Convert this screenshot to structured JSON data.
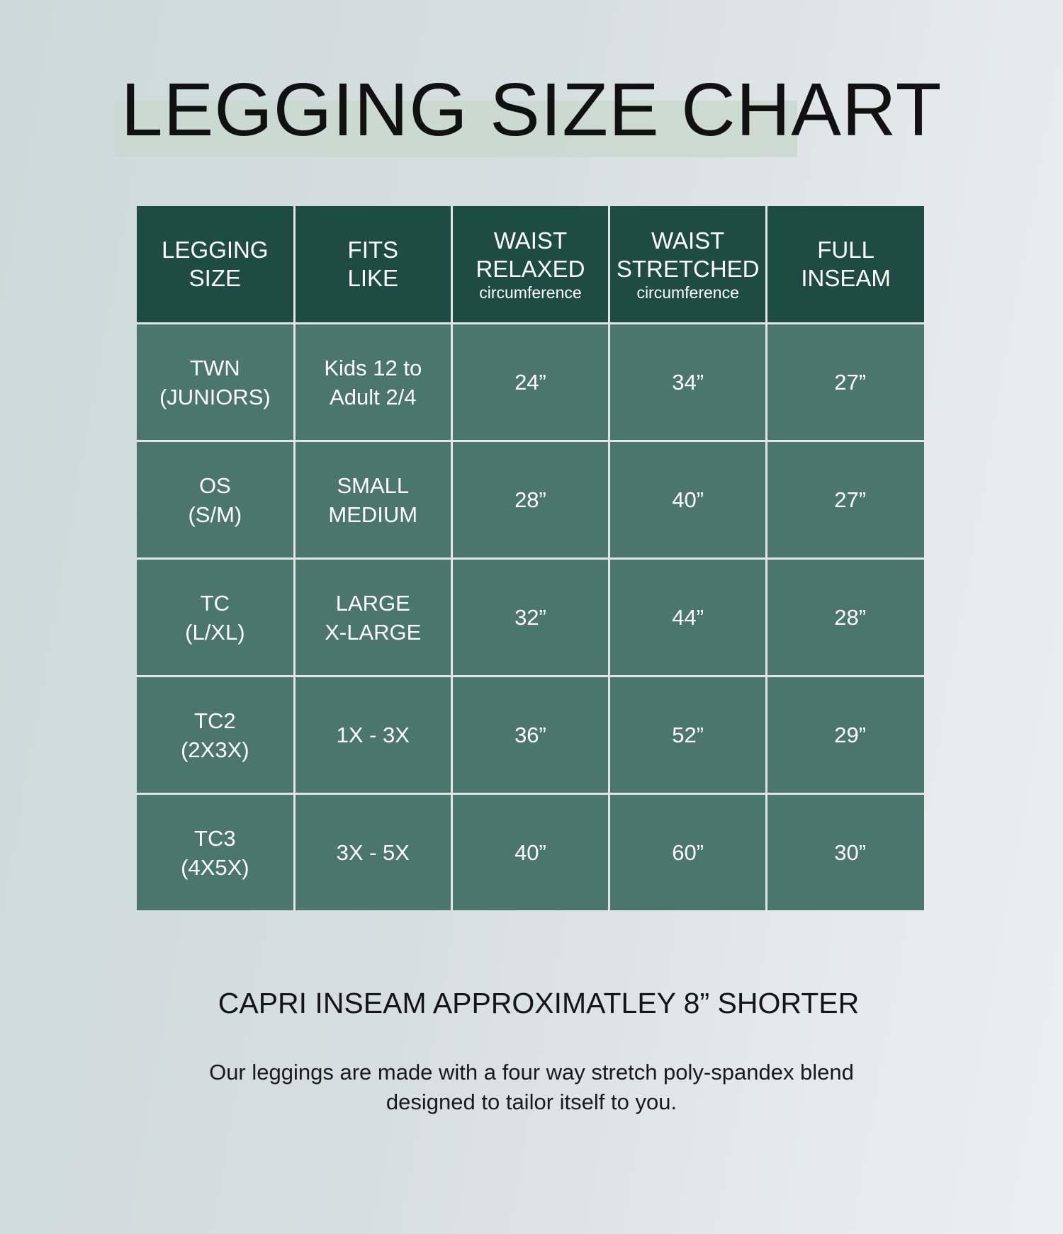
{
  "title": "LEGGING SIZE CHART",
  "table": {
    "headers": [
      {
        "main": "LEGGING\nSIZE",
        "sub": ""
      },
      {
        "main": "FITS\nLIKE",
        "sub": ""
      },
      {
        "main": "WAIST\nRELAXED",
        "sub": "circumference"
      },
      {
        "main": "WAIST\nSTRETCHED",
        "sub": "circumference"
      },
      {
        "main": "FULL\nINSEAM",
        "sub": ""
      }
    ],
    "rows": [
      [
        "TWN\n(JUNIORS)",
        "Kids 12 to\nAdult 2/4",
        "24”",
        "34”",
        "27”"
      ],
      [
        "OS\n(S/M)",
        "SMALL\nMEDIUM",
        "28”",
        "40”",
        "27”"
      ],
      [
        "TC\n(L/XL)",
        "LARGE\nX-LARGE",
        "32”",
        "44”",
        "28”"
      ],
      [
        "TC2\n(2X3X)",
        "1X - 3X",
        "36”",
        "52”",
        "29”"
      ],
      [
        "TC3\n(4X5X)",
        "3X - 5X",
        "40”",
        "60”",
        "30”"
      ]
    ]
  },
  "capri_note": "CAPRI INSEAM APPROXIMATLEY 8” SHORTER",
  "description": "Our leggings are made with a four way stretch poly-spandex blend\ndesigned to tailor itself to you.",
  "colors": {
    "header_bg": "#1f4b45",
    "cell_bg": "#4b766e",
    "title_highlight": "#c9d8cf"
  }
}
